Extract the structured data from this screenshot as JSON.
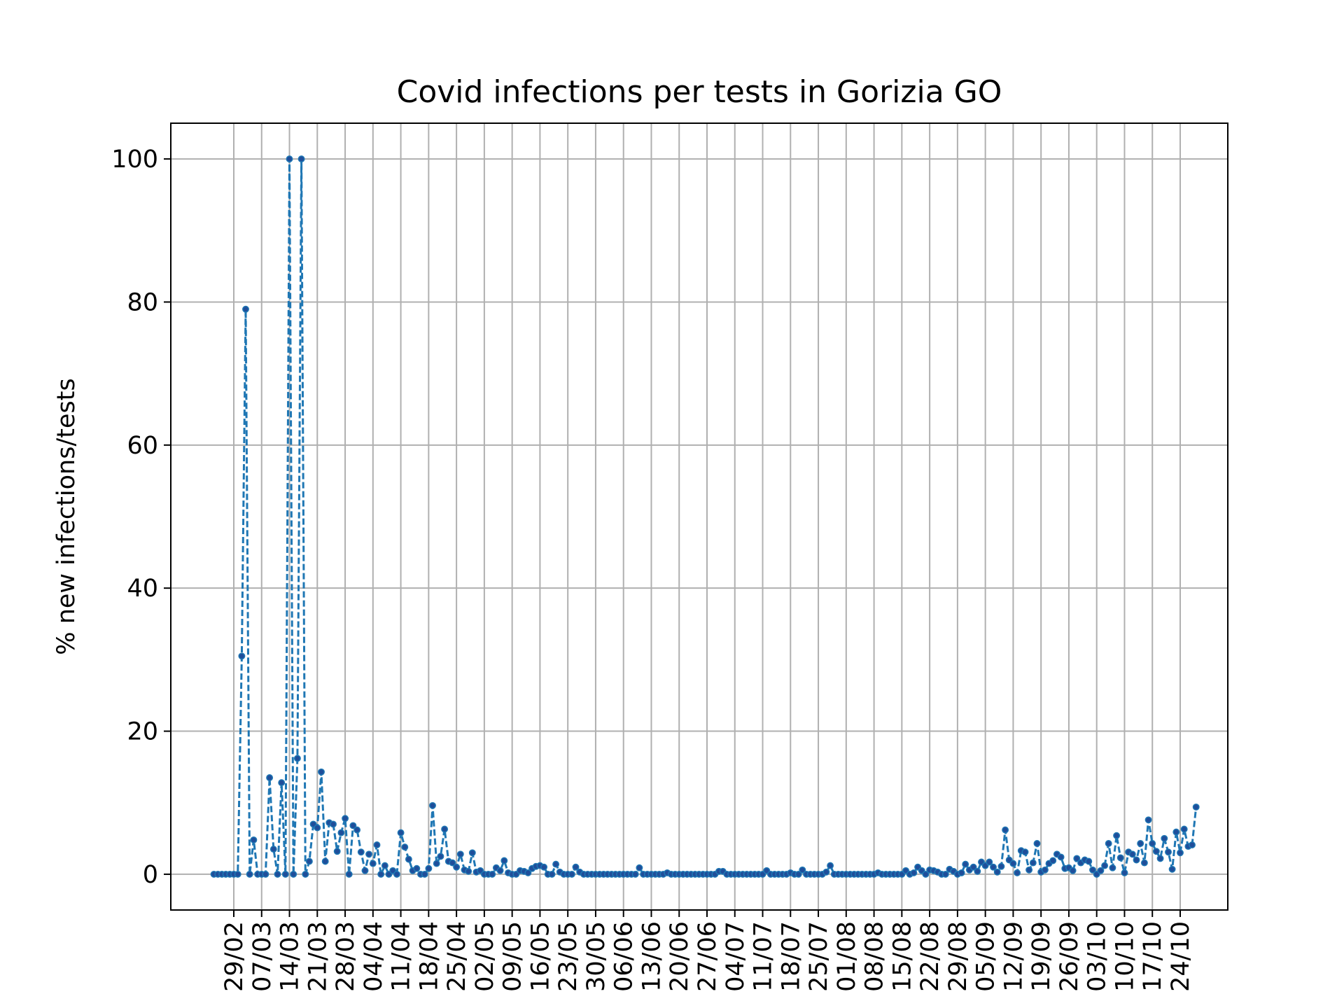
{
  "chart_data": {
    "type": "line",
    "title": "Covid infections per tests in Gorizia GO",
    "xlabel": "",
    "ylabel": "% new infections/tests",
    "ylim": [
      -5,
      105
    ],
    "yticks": [
      0,
      20,
      40,
      60,
      80,
      100
    ],
    "x_start": "24/02",
    "x_end": "24/10",
    "xticks": [
      "29/02",
      "07/03",
      "14/03",
      "21/03",
      "28/03",
      "04/04",
      "11/04",
      "18/04",
      "25/04",
      "02/05",
      "09/05",
      "16/05",
      "23/05",
      "30/05",
      "06/06",
      "13/06",
      "20/06",
      "27/06",
      "04/07",
      "11/07",
      "18/07",
      "25/07",
      "01/08",
      "08/08",
      "15/08",
      "22/08",
      "29/08",
      "05/09",
      "12/09",
      "19/09",
      "26/09",
      "03/10",
      "10/10",
      "17/10",
      "24/10"
    ],
    "grid": true,
    "line_style": "dashed",
    "marker": "dot",
    "colors": {
      "line": "#1f77b4",
      "marker": "#1f4e9a",
      "grid": "#b0b0b0"
    },
    "values": [
      0,
      0,
      0,
      0,
      0,
      0,
      0,
      30.5,
      79,
      0,
      4.8,
      0,
      0,
      0,
      13.5,
      3.5,
      0,
      12.8,
      0,
      100,
      0,
      16.2,
      100,
      0,
      1.8,
      7,
      6.5,
      14.3,
      1.8,
      7.2,
      7,
      3.2,
      5.8,
      7.8,
      0,
      6.8,
      6.2,
      3.1,
      0.5,
      2.8,
      1.5,
      4.1,
      0,
      1.2,
      0,
      0.5,
      0,
      5.8,
      3.8,
      2.1,
      0.5,
      0.8,
      0,
      0,
      0.8,
      9.6,
      1.5,
      2.5,
      6.3,
      1.8,
      1.6,
      1,
      2.8,
      0.6,
      0.4,
      3,
      0.3,
      0.5,
      0,
      0,
      0,
      0.9,
      0.5,
      1.9,
      0.2,
      0,
      0,
      0.5,
      0.4,
      0.2,
      0.8,
      1.1,
      1.2,
      1,
      0,
      0,
      1.4,
      0.3,
      0,
      0,
      0,
      1,
      0.3,
      0,
      0,
      0,
      0,
      0,
      0,
      0,
      0,
      0,
      0,
      0,
      0,
      0,
      0,
      0.9,
      0,
      0,
      0,
      0,
      0,
      0,
      0.2,
      0,
      0,
      0,
      0,
      0,
      0,
      0,
      0,
      0,
      0,
      0,
      0,
      0.4,
      0.4,
      0,
      0,
      0,
      0,
      0,
      0,
      0,
      0,
      0,
      0,
      0.5,
      0,
      0,
      0,
      0,
      0,
      0.2,
      0,
      0,
      0.6,
      0,
      0,
      0,
      0,
      0,
      0.3,
      1.2,
      0,
      0,
      0,
      0,
      0,
      0,
      0,
      0,
      0,
      0,
      0,
      0.2,
      0,
      0,
      0,
      0,
      0,
      0,
      0.5,
      0,
      0.2,
      1,
      0.5,
      0,
      0.6,
      0.5,
      0.3,
      0,
      0,
      0.7,
      0.4,
      0,
      0.2,
      1.4,
      0.6,
      1,
      0.4,
      1.7,
      1.2,
      1.7,
      1,
      0.3,
      1.1,
      6.2,
      2,
      1.5,
      0.2,
      3.3,
      3.1,
      0.6,
      1.6,
      4.3,
      0.3,
      0.6,
      1.5,
      1.9,
      2.8,
      2.4,
      0.8,
      0.9,
      0.5,
      2.2,
      1.6,
      2,
      1.8,
      0.6,
      0,
      0.5,
      1.2,
      4.3,
      0.9,
      5.4,
      2.3,
      0.2,
      3.1,
      2.8,
      2,
      4.3,
      1.6,
      7.6,
      4.3,
      3.2,
      2.2,
      5,
      3.1,
      0.7,
      5.9,
      3,
      6.3,
      3.9,
      4.1,
      9.4
    ]
  }
}
